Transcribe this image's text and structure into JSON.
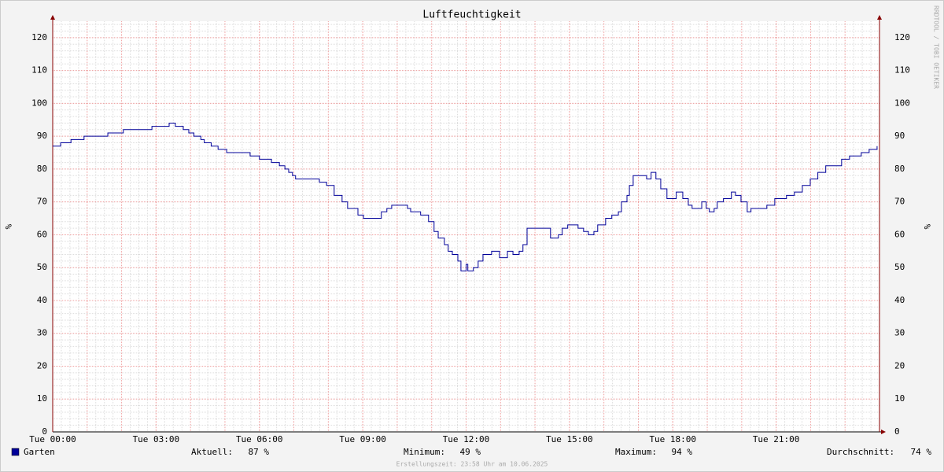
{
  "chart_data": {
    "type": "line",
    "title": "Luftfeuchtigkeit",
    "ylabel": "%",
    "watermark": "RRDTOOL / TOBI OETIKER",
    "footer": "Erstellungszeit: 23:58 Uhr am 10.06.2025",
    "xlim": [
      0,
      24
    ],
    "xticks": [
      {
        "value": 0,
        "label": "Tue 00:00"
      },
      {
        "value": 3,
        "label": "Tue 03:00"
      },
      {
        "value": 6,
        "label": "Tue 06:00"
      },
      {
        "value": 9,
        "label": "Tue 09:00"
      },
      {
        "value": 12,
        "label": "Tue 12:00"
      },
      {
        "value": 15,
        "label": "Tue 15:00"
      },
      {
        "value": 18,
        "label": "Tue 18:00"
      },
      {
        "value": 21,
        "label": "Tue 21:00"
      }
    ],
    "ylim": [
      0,
      125
    ],
    "yticks": [
      0,
      10,
      20,
      30,
      40,
      50,
      60,
      70,
      80,
      90,
      100,
      110,
      120
    ],
    "grid": true,
    "minor_grid": true,
    "x": [
      0,
      0.23,
      0.53,
      0.91,
      1.6,
      2.05,
      2.88,
      3.38,
      3.56,
      3.79,
      3.95,
      4.1,
      4.3,
      4.4,
      4.6,
      4.8,
      5.05,
      5.73,
      6.0,
      6.35,
      6.58,
      6.74,
      6.85,
      6.96,
      7.05,
      7.74,
      7.95,
      8.17,
      8.4,
      8.56,
      8.86,
      9.02,
      9.43,
      9.54,
      9.7,
      9.84,
      10.3,
      10.39,
      10.68,
      10.91,
      11.07,
      11.19,
      11.37,
      11.48,
      11.6,
      11.76,
      11.85,
      11.94,
      12.0,
      12.05,
      12.21,
      12.35,
      12.49,
      12.74,
      12.97,
      13.2,
      13.36,
      13.54,
      13.65,
      13.77,
      14.34,
      14.45,
      14.68,
      14.79,
      14.95,
      15.25,
      15.41,
      15.55,
      15.71,
      15.82,
      16.05,
      16.23,
      16.42,
      16.51,
      16.67,
      16.74,
      16.85,
      17.15,
      17.24,
      17.37,
      17.51,
      17.65,
      17.83,
      17.92,
      18.1,
      18.29,
      18.45,
      18.56,
      18.7,
      18.84,
      18.97,
      19.06,
      19.2,
      19.29,
      19.47,
      19.7,
      19.82,
      19.98,
      20.16,
      20.27,
      20.62,
      20.73,
      20.96,
      21.19,
      21.3,
      21.53,
      21.76,
      21.99,
      22.21,
      22.44,
      22.9,
      23.13,
      23.47,
      23.7,
      23.93
    ],
    "series": [
      {
        "name": "Garten",
        "color": "#000099",
        "values": [
          87,
          88,
          89,
          90,
          91,
          92,
          93,
          94,
          93,
          92,
          91,
          90,
          89,
          88,
          87,
          86,
          85,
          84,
          83,
          82,
          81,
          80,
          79,
          78,
          77,
          76,
          75,
          72,
          70,
          68,
          66,
          65,
          65,
          67,
          68,
          69,
          68,
          67,
          66,
          64,
          61,
          59,
          57,
          55,
          54,
          52,
          49,
          49,
          51,
          49,
          50,
          52,
          54,
          55,
          53,
          55,
          54,
          55,
          57,
          62,
          62,
          59,
          60,
          62,
          63,
          62,
          61,
          60,
          61,
          63,
          65,
          66,
          67,
          70,
          72,
          75,
          78,
          78,
          77,
          79,
          77,
          74,
          71,
          71,
          73,
          71,
          69,
          68,
          68,
          70,
          68,
          67,
          68,
          70,
          71,
          73,
          72,
          70,
          67,
          68,
          68,
          69,
          71,
          71,
          72,
          73,
          75,
          77,
          79,
          81,
          83,
          84,
          85,
          86,
          87
        ]
      }
    ],
    "stats": [
      {
        "label": "Aktuell:",
        "value": "87 %"
      },
      {
        "label": "Minimum:",
        "value": "49 %"
      },
      {
        "label": "Maximum:",
        "value": "94 %"
      },
      {
        "label": "Durchschnitt:",
        "value": "74 %"
      }
    ]
  }
}
